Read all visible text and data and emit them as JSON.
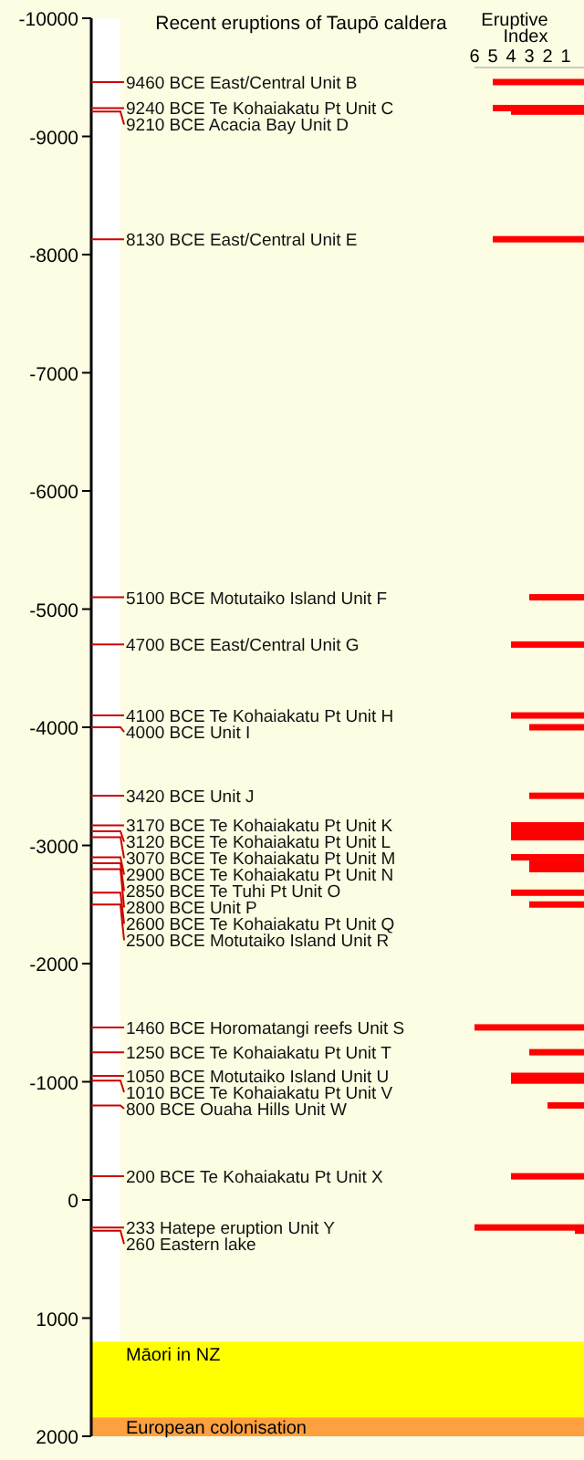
{
  "chart_data": {
    "type": "bar",
    "orientation": "horizontal",
    "title": "Recent eruptions of Taupō caldera",
    "xlabel": "Eruptive Index",
    "x": [
      -9460,
      -9240,
      -9210,
      -8130,
      -5100,
      -4700,
      -4100,
      -4000,
      -3420,
      -3170,
      -3120,
      -3070,
      -2900,
      -2850,
      -2800,
      -2600,
      -2500,
      -1460,
      -1250,
      -1050,
      -1010,
      -800,
      -200,
      233,
      260
    ],
    "series": [
      {
        "axis": "x2",
        "color": "#ff0000",
        "values": [
          5,
          5,
          4,
          5,
          3,
          4,
          4,
          3,
          3,
          4,
          4,
          4,
          4,
          3,
          3,
          4,
          3,
          6,
          3,
          4,
          4,
          2,
          4,
          6,
          0.5
        ]
      }
    ],
    "x2lim": [
      6,
      0
    ],
    "x2ticks": [
      6,
      5,
      4,
      3,
      2,
      1
    ],
    "ylim": [
      2000,
      -10000
    ],
    "yticks": [
      -10000,
      -9000,
      -8000,
      -7000,
      -6000,
      -5000,
      -4000,
      -3000,
      -2000,
      -1000,
      0,
      1000,
      2000
    ],
    "annotations": [
      "9460 BCE East/Central Unit B",
      "9240 BCE Te Kohaiakatu Pt  Unit C",
      "9210 BCE Acacia Bay Unit D",
      "8130 BCE East/Central Unit E",
      "5100 BCE Motutaiko Island Unit F",
      "4700 BCE East/Central Unit G",
      "4100 BCE Te Kohaiakatu Pt Unit H",
      "4000 BCE Unit I",
      "3420 BCE Unit J",
      "3170 BCE Te Kohaiakatu Pt Unit K",
      "3120 BCE Te Kohaiakatu Pt Unit L",
      "3070 BCE Te Kohaiakatu Pt Unit M",
      "2900 BCE Te Kohaiakatu Pt Unit N",
      "2850 BCE Te Tuhi Pt Unit O",
      "2800 BCE Unit P",
      "2600 BCE Te Kohaiakatu Pt Unit Q",
      "2500 BCE Motutaiko Island Unit R",
      "1460 BCE Horomatangi reefs Unit S",
      "1250 BCE Te Kohaiakatu Pt Unit T",
      "1050 BCE Motutaiko Island Unit U",
      "1010 BCE Te Kohaiakatu Pt Unit V",
      "800 BCE Ouaha Hills Unit W",
      "200 BCE Te Kohaiakatu Pt Unit X",
      "233 Hatepe eruption Unit Y",
      "260 Eastern lake"
    ],
    "bands": [
      {
        "axis": "y",
        "from": 1200,
        "to": 1840,
        "label": "Māori in NZ",
        "color": "#ffff00"
      },
      {
        "axis": "y",
        "from": 1840,
        "to": 2000,
        "label": "European colonisation",
        "color": "#ffa040"
      }
    ]
  }
}
